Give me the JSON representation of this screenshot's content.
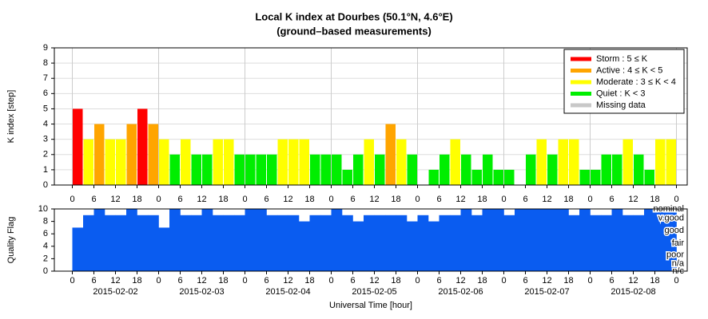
{
  "chart_data": [
    {
      "type": "bar",
      "title": "Local K index at Dourbes (50.1°N, 4.6°E)",
      "subtitle": "(ground–based measurements)",
      "ylabel": "K index [step]",
      "xlim": [
        -5,
        171
      ],
      "ylim": [
        0,
        9
      ],
      "yticks": [
        0,
        1,
        2,
        3,
        4,
        5,
        6,
        7,
        8,
        9
      ],
      "xticks": [
        0,
        6,
        12,
        18,
        {
          "value": 24,
          "label": "0"
        },
        {
          "value": 30,
          "label": "6"
        },
        {
          "value": 36,
          "label": "12"
        },
        {
          "value": 42,
          "label": "18"
        },
        {
          "value": 48,
          "label": "0"
        },
        {
          "value": 54,
          "label": "6"
        },
        {
          "value": 60,
          "label": "12"
        },
        {
          "value": 66,
          "label": "18"
        },
        {
          "value": 72,
          "label": "0"
        },
        {
          "value": 78,
          "label": "6"
        },
        {
          "value": 84,
          "label": "12"
        },
        {
          "value": 90,
          "label": "18"
        },
        {
          "value": 96,
          "label": "0"
        },
        {
          "value": 102,
          "label": "6"
        },
        {
          "value": 108,
          "label": "12"
        },
        {
          "value": 114,
          "label": "18"
        },
        {
          "value": 120,
          "label": "0"
        },
        {
          "value": 126,
          "label": "6"
        },
        {
          "value": 132,
          "label": "12"
        },
        {
          "value": 138,
          "label": "18"
        },
        {
          "value": 144,
          "label": "0"
        },
        {
          "value": 150,
          "label": "6"
        },
        {
          "value": 156,
          "label": "12"
        },
        {
          "value": 162,
          "label": "18"
        },
        {
          "value": 168,
          "label": "0"
        }
      ],
      "grid": true,
      "legend": "upper right",
      "series": [
        {
          "name": "Storm : 5 ≤ K",
          "color": "#ff0000",
          "x": [
            0,
            18
          ],
          "values": [
            5,
            5
          ]
        },
        {
          "name": "Active : 4 ≤ K < 5",
          "color": "#ffa500",
          "x": [
            6,
            15,
            21,
            87
          ],
          "values": [
            4,
            4,
            4,
            4
          ]
        },
        {
          "name": "Moderate : 3 ≤ K < 4",
          "color": "#ffff00",
          "x": [
            3,
            9,
            12,
            24,
            30,
            39,
            42,
            57,
            60,
            63,
            81,
            90,
            105,
            129,
            135,
            138,
            153,
            162,
            165
          ],
          "values": [
            3,
            3,
            3,
            3,
            3,
            3,
            3,
            3,
            3,
            3,
            3,
            3,
            3,
            3,
            3,
            3,
            3,
            3,
            3
          ]
        },
        {
          "name": "Quiet : K < 3",
          "color": "#00ee00",
          "x": [
            27,
            33,
            36,
            45,
            48,
            51,
            54,
            66,
            69,
            72,
            75,
            78,
            84,
            93,
            96,
            99,
            102,
            108,
            111,
            114,
            117,
            120,
            123,
            126,
            132,
            141,
            144,
            147,
            150,
            156,
            159
          ],
          "values": [
            2,
            2,
            2,
            2,
            2,
            2,
            2,
            2,
            2,
            2,
            1,
            2,
            2,
            2,
            0,
            1,
            2,
            2,
            1,
            2,
            1,
            1,
            0,
            2,
            2,
            1,
            1,
            2,
            2,
            2,
            1
          ]
        },
        {
          "name": "Missing data",
          "color": "#c8c8c8",
          "x": [],
          "values": []
        }
      ]
    },
    {
      "type": "bar",
      "ylabel": "Quality Flag",
      "xlabel": "Universal Time [hour]",
      "xlim": [
        -5,
        171
      ],
      "ylim": [
        0,
        10
      ],
      "yticks": [
        0,
        2,
        4,
        6,
        8,
        10
      ],
      "xticks": [
        0,
        6,
        12,
        18,
        {
          "value": 24,
          "label": "0"
        },
        {
          "value": 30,
          "label": "6"
        },
        {
          "value": 36,
          "label": "12"
        },
        {
          "value": 42,
          "label": "18"
        },
        {
          "value": 48,
          "label": "0"
        },
        {
          "value": 54,
          "label": "6"
        },
        {
          "value": 60,
          "label": "12"
        },
        {
          "value": 66,
          "label": "18"
        },
        {
          "value": 72,
          "label": "0"
        },
        {
          "value": 78,
          "label": "6"
        },
        {
          "value": 84,
          "label": "12"
        },
        {
          "value": 90,
          "label": "18"
        },
        {
          "value": 96,
          "label": "0"
        },
        {
          "value": 102,
          "label": "6"
        },
        {
          "value": 108,
          "label": "12"
        },
        {
          "value": 114,
          "label": "18"
        },
        {
          "value": 120,
          "label": "0"
        },
        {
          "value": 126,
          "label": "6"
        },
        {
          "value": 132,
          "label": "12"
        },
        {
          "value": 138,
          "label": "18"
        },
        {
          "value": 144,
          "label": "0"
        },
        {
          "value": 150,
          "label": "6"
        },
        {
          "value": 156,
          "label": "12"
        },
        {
          "value": 162,
          "label": "18"
        },
        {
          "value": 168,
          "label": "0"
        }
      ],
      "date_labels": [
        {
          "value": 12,
          "label": "2015-02-02"
        },
        {
          "value": 36,
          "label": "2015-02-03"
        },
        {
          "value": 60,
          "label": "2015-02-04"
        },
        {
          "value": 84,
          "label": "2015-02-05"
        },
        {
          "value": 108,
          "label": "2015-02-06"
        },
        {
          "value": 132,
          "label": "2015-02-07"
        },
        {
          "value": 156,
          "label": "2015-02-08"
        }
      ],
      "flag_labels": [
        {
          "value": 10,
          "label": "nominal"
        },
        {
          "value": 8.5,
          "label": "v.good"
        },
        {
          "value": 6.5,
          "label": "good"
        },
        {
          "value": 4.5,
          "label": "fair"
        },
        {
          "value": 2.6,
          "label": "poor"
        },
        {
          "value": 1.2,
          "label": "n/a"
        },
        {
          "value": 0,
          "label": "n/c"
        }
      ],
      "color": "#0a5cf0",
      "x": [
        0,
        3,
        6,
        9,
        12,
        15,
        18,
        21,
        24,
        27,
        30,
        33,
        36,
        39,
        42,
        45,
        48,
        51,
        54,
        57,
        60,
        63,
        66,
        69,
        72,
        75,
        78,
        81,
        84,
        87,
        90,
        93,
        96,
        99,
        102,
        105,
        108,
        111,
        114,
        117,
        120,
        123,
        126,
        129,
        132,
        135,
        138,
        141,
        144,
        147,
        150,
        153,
        156,
        159,
        162,
        165
      ],
      "values": [
        7,
        9,
        10,
        9,
        9,
        10,
        9,
        9,
        7,
        10,
        9,
        9,
        10,
        9,
        9,
        9,
        10,
        10,
        9,
        9,
        9,
        8,
        9,
        9,
        10,
        9,
        8,
        9,
        9,
        9,
        9,
        8,
        9,
        8,
        9,
        9,
        10,
        9,
        10,
        10,
        9,
        10,
        10,
        10,
        10,
        10,
        9,
        10,
        9,
        9,
        10,
        9,
        9,
        10,
        10,
        10
      ]
    }
  ]
}
